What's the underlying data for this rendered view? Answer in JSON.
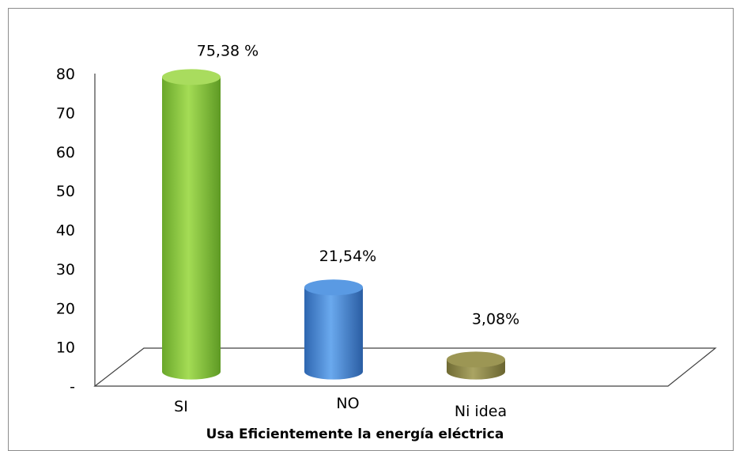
{
  "chart_data": {
    "type": "bar",
    "title": "",
    "xlabel": "Usa Eficientemente la energía eléctrica",
    "ylabel": "",
    "ylim": [
      0,
      80
    ],
    "y_ticks": [
      "-",
      "10",
      "20",
      "30",
      "40",
      "50",
      "60",
      "70",
      "80"
    ],
    "categories": [
      "SI",
      "NO",
      "Ni idea"
    ],
    "values": [
      75.38,
      21.54,
      3.08
    ],
    "data_labels": [
      "75,38 %",
      "21,54%",
      "3,08%"
    ],
    "colors": [
      "#8dc63f",
      "#4f8fd6",
      "#8f8a4f"
    ],
    "grid": false,
    "legend": "none"
  }
}
